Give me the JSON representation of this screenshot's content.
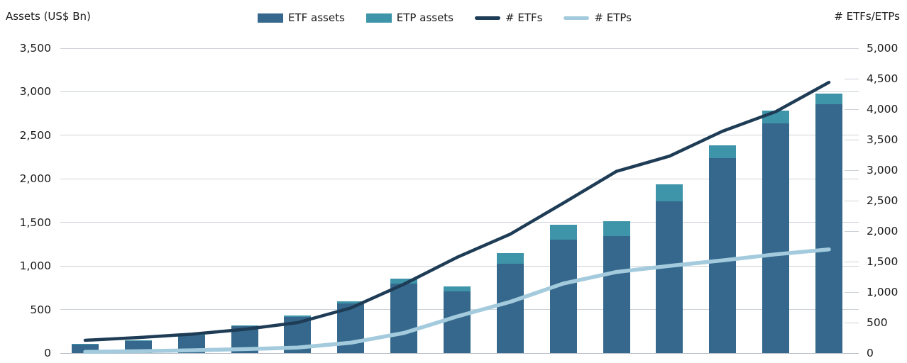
{
  "chart_data": {
    "type": "bar",
    "subtype": "stacked-bar-with-lines-combo",
    "title": "",
    "description": "Global ETF/ETP growth: stacked asset bars on left axis, product-count lines on right axis. X-axis category labels are cropped out of the screenshot (15 unlabeled periods).",
    "n_groups": 15,
    "grid": "horizontal",
    "legend": {
      "position": "top-center"
    },
    "left_axis": {
      "title": "Assets (US$ Bn)",
      "min": 0,
      "max": 3500,
      "step": 500,
      "tick_labels": [
        "0",
        "500",
        "1,000",
        "1,500",
        "2,000",
        "2,500",
        "3,000",
        "3,500"
      ]
    },
    "right_axis": {
      "title": "# ETFs/ETPs",
      "min": 0,
      "max": 5000,
      "step": 500,
      "tick_labels": [
        "0",
        "500",
        "1,000",
        "1,500",
        "2,000",
        "2,500",
        "3,000",
        "3,500",
        "4,000",
        "4,500",
        "5,000"
      ]
    },
    "bar_series": [
      {
        "name": "ETF assets",
        "axis": "left",
        "color": "#35688C",
        "values": [
          105,
          140,
          205,
          310,
          415,
          570,
          795,
          705,
          1025,
          1300,
          1345,
          1745,
          2240,
          2640,
          2860
        ]
      },
      {
        "name": "ETP assets",
        "axis": "left",
        "color": "#3E95A9",
        "values": [
          3,
          5,
          8,
          10,
          15,
          25,
          60,
          60,
          120,
          170,
          170,
          190,
          145,
          140,
          120
        ]
      }
    ],
    "line_series": [
      {
        "name": "# ETFs",
        "axis": "right",
        "color": "#1E3C55",
        "stroke_width": 4.5,
        "values": [
          210,
          255,
          310,
          390,
          500,
          740,
          1130,
          1570,
          1950,
          2460,
          2980,
          3230,
          3640,
          3960,
          4440
        ]
      },
      {
        "name": "# ETPs",
        "axis": "right",
        "color": "#A3CBDD",
        "stroke_width": 5.5,
        "values": [
          20,
          30,
          45,
          65,
          90,
          170,
          330,
          600,
          840,
          1140,
          1330,
          1430,
          1520,
          1620,
          1700
        ]
      }
    ]
  }
}
